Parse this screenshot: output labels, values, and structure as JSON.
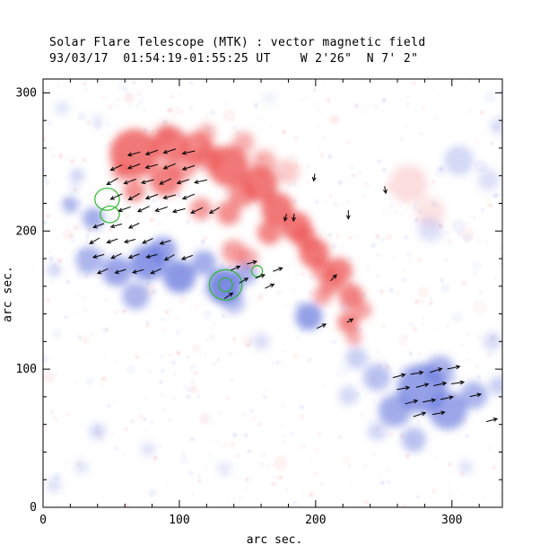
{
  "chart_data": {
    "type": "heatmap",
    "title": "Solar Flare Telescope (MTK) : vector magnetic field",
    "subtitle": "93/03/17  01:54:19-01:55:25 UT    W 2'26\"  N 7' 2\"",
    "xlabel": "arc sec.",
    "ylabel": "arc sec.",
    "xlim": [
      0,
      337
    ],
    "ylim": [
      0,
      310
    ],
    "xticks": [
      0,
      100,
      200,
      300
    ],
    "yticks": [
      0,
      100,
      200,
      300
    ],
    "minor_tick_step": 20,
    "grid": false,
    "legend": "none",
    "polarity_colors": {
      "positive": "#ee5555",
      "negative": "#6677dd"
    },
    "contour_color": "#2eb82e",
    "vector_color": "#000000",
    "blob_format": [
      "x_arcsec",
      "y_arcsec",
      "radius_arcsec",
      "opacity",
      "polarity"
    ],
    "blobs": [
      [
        67,
        256,
        18,
        0.8,
        "+"
      ],
      [
        93,
        263,
        13,
        0.75,
        "+"
      ],
      [
        113,
        260,
        12,
        0.7,
        "+"
      ],
      [
        147,
        264,
        8,
        0.45,
        "+"
      ],
      [
        136,
        247,
        15,
        0.8,
        "+"
      ],
      [
        122,
        253,
        10,
        0.55,
        "+"
      ],
      [
        103,
        247,
        10,
        0.55,
        "+"
      ],
      [
        90,
        237,
        12,
        0.75,
        "+"
      ],
      [
        67,
        229,
        8,
        0.65,
        "+"
      ],
      [
        57,
        243,
        7,
        0.5,
        "+"
      ],
      [
        90,
        270,
        8,
        0.45,
        "+"
      ],
      [
        120,
        271,
        7,
        0.4,
        "+"
      ],
      [
        159,
        234,
        13,
        0.8,
        "+"
      ],
      [
        146,
        227,
        10,
        0.65,
        "+"
      ],
      [
        162,
        250,
        9,
        0.45,
        "+"
      ],
      [
        172,
        216,
        12,
        0.8,
        "+"
      ],
      [
        186,
        203,
        11,
        0.8,
        "+"
      ],
      [
        166,
        199,
        9,
        0.7,
        "+"
      ],
      [
        136,
        213,
        9,
        0.65,
        "+"
      ],
      [
        116,
        216,
        8,
        0.6,
        "+"
      ],
      [
        199,
        184,
        11,
        0.8,
        "+"
      ],
      [
        192,
        195,
        9,
        0.65,
        "+"
      ],
      [
        217,
        171,
        10,
        0.75,
        "+"
      ],
      [
        211,
        162,
        8,
        0.65,
        "+"
      ],
      [
        226,
        153,
        9,
        0.75,
        "+"
      ],
      [
        224,
        134,
        8,
        0.7,
        "+"
      ],
      [
        228,
        123,
        6,
        0.5,
        "+"
      ],
      [
        234,
        143,
        7,
        0.55,
        "+"
      ],
      [
        205,
        172,
        8,
        0.6,
        "+"
      ],
      [
        205,
        153,
        7,
        0.55,
        "+"
      ],
      [
        140,
        185,
        9,
        0.55,
        "+"
      ],
      [
        150,
        180,
        8,
        0.5,
        "+"
      ],
      [
        179,
        243,
        9,
        0.3,
        "+"
      ],
      [
        268,
        234,
        14,
        0.2,
        "+"
      ],
      [
        284,
        214,
        11,
        0.16,
        "+"
      ],
      [
        20,
        219,
        6,
        0.55,
        "-"
      ],
      [
        37,
        209,
        8,
        0.6,
        "-"
      ],
      [
        25,
        240,
        5,
        0.35,
        "-"
      ],
      [
        34,
        179,
        10,
        0.55,
        "-"
      ],
      [
        54,
        171,
        11,
        0.65,
        "-"
      ],
      [
        77,
        177,
        13,
        0.75,
        "-"
      ],
      [
        88,
        186,
        10,
        0.65,
        "-"
      ],
      [
        100,
        167,
        12,
        0.75,
        "-"
      ],
      [
        68,
        153,
        10,
        0.55,
        "-"
      ],
      [
        118,
        177,
        9,
        0.6,
        "-"
      ],
      [
        133,
        160,
        13,
        0.85,
        "-"
      ],
      [
        149,
        169,
        8,
        0.55,
        "-"
      ],
      [
        140,
        148,
        8,
        0.45,
        "-"
      ],
      [
        195,
        138,
        10,
        0.7,
        "-"
      ],
      [
        278,
        86,
        18,
        0.7,
        "-"
      ],
      [
        297,
        70,
        14,
        0.65,
        "-"
      ],
      [
        258,
        70,
        12,
        0.6,
        "-"
      ],
      [
        291,
        99,
        11,
        0.55,
        "-"
      ],
      [
        316,
        81,
        10,
        0.55,
        "-"
      ],
      [
        245,
        94,
        10,
        0.45,
        "-"
      ],
      [
        272,
        49,
        9,
        0.45,
        "-"
      ],
      [
        230,
        108,
        8,
        0.35,
        "-"
      ],
      [
        305,
        251,
        11,
        0.28,
        "-"
      ],
      [
        327,
        237,
        8,
        0.22,
        "-"
      ],
      [
        284,
        201,
        9,
        0.22,
        "-"
      ],
      [
        40,
        55,
        6,
        0.28,
        "-"
      ],
      [
        77,
        42,
        5,
        0.22,
        "-"
      ],
      [
        133,
        28,
        5,
        0.18,
        "-"
      ],
      [
        8,
        172,
        5,
        0.3,
        "-"
      ],
      [
        310,
        29,
        5,
        0.22,
        "-"
      ],
      [
        245,
        55,
        7,
        0.28,
        "-"
      ],
      [
        334,
        88,
        7,
        0.35,
        "-"
      ],
      [
        224,
        81,
        7,
        0.28,
        "-"
      ],
      [
        330,
        120,
        7,
        0.25,
        "-"
      ],
      [
        160,
        120,
        6,
        0.25,
        "-"
      ],
      [
        8,
        16,
        5,
        0.25,
        "-"
      ],
      [
        28,
        29,
        5,
        0.2,
        "-"
      ],
      [
        14,
        289,
        5,
        0.2,
        "-"
      ],
      [
        40,
        280,
        4,
        0.18,
        "-"
      ],
      [
        166,
        296,
        4,
        0.15,
        "-"
      ],
      [
        334,
        276,
        6,
        0.25,
        "-"
      ]
    ],
    "vector_format": [
      "x_arcsec",
      "y_arcsec",
      "angle_deg_ccw_from_east",
      "length_arcsec"
    ],
    "vectors": [
      [
        67,
        256,
        195,
        9
      ],
      [
        80,
        257,
        200,
        9
      ],
      [
        93,
        258,
        198,
        9
      ],
      [
        107,
        257,
        192,
        9
      ],
      [
        54,
        246,
        205,
        9
      ],
      [
        67,
        247,
        200,
        9
      ],
      [
        80,
        247,
        195,
        9
      ],
      [
        93,
        247,
        203,
        9
      ],
      [
        107,
        246,
        198,
        9
      ],
      [
        51,
        236,
        210,
        9
      ],
      [
        64,
        236,
        200,
        9
      ],
      [
        77,
        236,
        195,
        9
      ],
      [
        90,
        236,
        205,
        9
      ],
      [
        103,
        236,
        198,
        9
      ],
      [
        116,
        236,
        192,
        9
      ],
      [
        54,
        225,
        205,
        9
      ],
      [
        67,
        225,
        210,
        9
      ],
      [
        80,
        225,
        200,
        9
      ],
      [
        93,
        225,
        195,
        9
      ],
      [
        107,
        225,
        202,
        9
      ],
      [
        60,
        216,
        200,
        9
      ],
      [
        74,
        216,
        205,
        9
      ],
      [
        87,
        216,
        198,
        9
      ],
      [
        100,
        215,
        195,
        9
      ],
      [
        113,
        215,
        205,
        9
      ],
      [
        126,
        215,
        210,
        8
      ],
      [
        41,
        204,
        200,
        8
      ],
      [
        54,
        204,
        195,
        8
      ],
      [
        67,
        204,
        205,
        8
      ],
      [
        38,
        193,
        210,
        8
      ],
      [
        51,
        193,
        200,
        8
      ],
      [
        64,
        193,
        195,
        8
      ],
      [
        77,
        193,
        205,
        8
      ],
      [
        90,
        192,
        198,
        8
      ],
      [
        41,
        182,
        195,
        8
      ],
      [
        54,
        182,
        205,
        8
      ],
      [
        67,
        182,
        200,
        8
      ],
      [
        80,
        182,
        195,
        8
      ],
      [
        93,
        181,
        210,
        8
      ],
      [
        106,
        181,
        200,
        8
      ],
      [
        44,
        171,
        205,
        8
      ],
      [
        57,
        171,
        198,
        8
      ],
      [
        70,
        171,
        195,
        8
      ],
      [
        83,
        171,
        205,
        8
      ],
      [
        141,
        173,
        25,
        7
      ],
      [
        153,
        177,
        15,
        7
      ],
      [
        147,
        164,
        30,
        7
      ],
      [
        159,
        167,
        20,
        7
      ],
      [
        166,
        160,
        25,
        7
      ],
      [
        136,
        153,
        35,
        7
      ],
      [
        172,
        172,
        20,
        7
      ],
      [
        261,
        95,
        15,
        9
      ],
      [
        274,
        97,
        10,
        9
      ],
      [
        288,
        99,
        18,
        9
      ],
      [
        301,
        101,
        12,
        9
      ],
      [
        264,
        86,
        10,
        9
      ],
      [
        278,
        88,
        15,
        9
      ],
      [
        291,
        89,
        12,
        9
      ],
      [
        304,
        90,
        8,
        9
      ],
      [
        270,
        76,
        15,
        9
      ],
      [
        283,
        77,
        10,
        9
      ],
      [
        296,
        79,
        12,
        9
      ],
      [
        276,
        67,
        18,
        9
      ],
      [
        290,
        68,
        10,
        9
      ],
      [
        317,
        81,
        12,
        8
      ],
      [
        329,
        63,
        15,
        8
      ],
      [
        199,
        239,
        260,
        5
      ],
      [
        178,
        210,
        255,
        5
      ],
      [
        184,
        210,
        265,
        5
      ],
      [
        224,
        212,
        270,
        6
      ],
      [
        251,
        230,
        280,
        5
      ],
      [
        213,
        166,
        45,
        6
      ],
      [
        204,
        131,
        25,
        7
      ],
      [
        225,
        135,
        30,
        5
      ]
    ],
    "contour_format": [
      "x_arcsec",
      "y_arcsec",
      "rx_arcsec",
      "ry_arcsec"
    ],
    "contours": [
      [
        47,
        223,
        9,
        8
      ],
      [
        49,
        212,
        7,
        6
      ],
      [
        134,
        161,
        12,
        11
      ],
      [
        134,
        161,
        5,
        5
      ],
      [
        157,
        171,
        4,
        4
      ]
    ],
    "noise": {
      "seed": 12,
      "specks": 650,
      "patches": 70
    }
  }
}
